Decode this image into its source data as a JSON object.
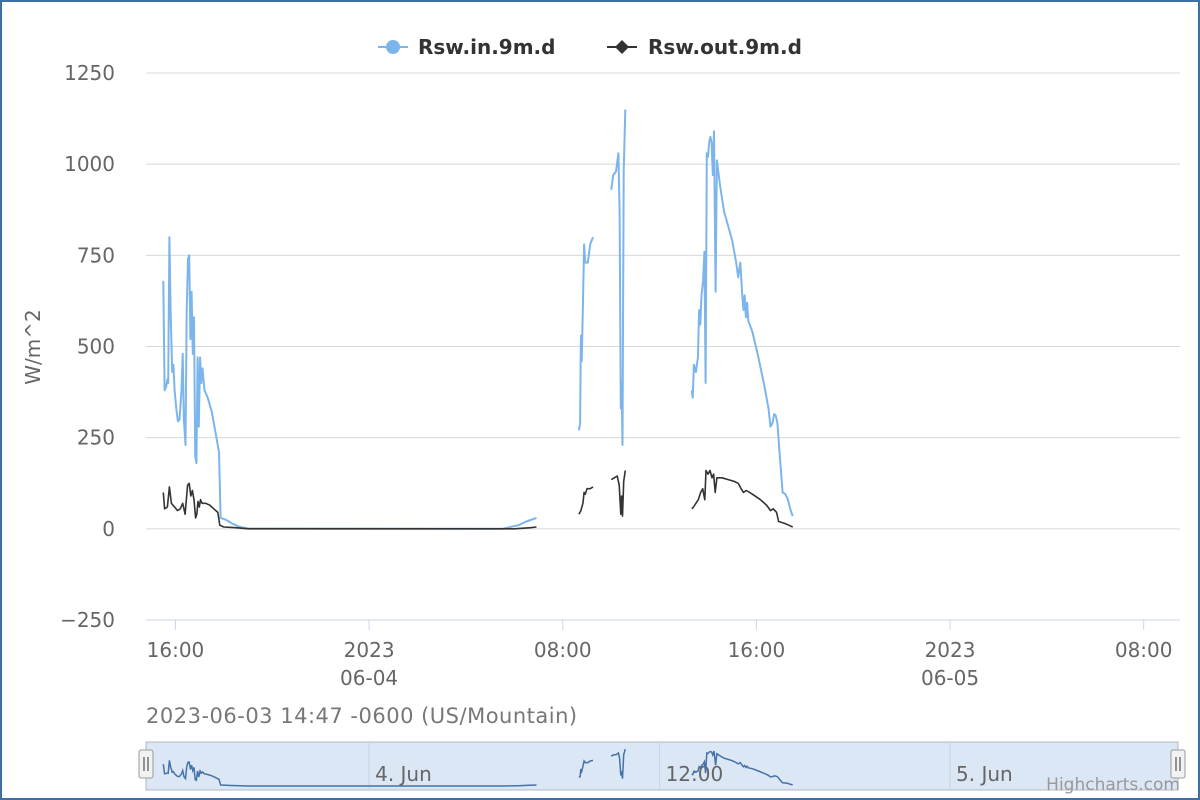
{
  "timestamp_label": "2023-06-03 14:47 -0600 (US/Mountain)",
  "credits": "Highcharts.com",
  "colors": {
    "series_in": "#7cb5ec",
    "series_out": "#333333",
    "grid": "#d8d8d8",
    "navigator_fill": "#dbe7f5"
  },
  "navigator": {
    "labels": [
      "4. Jun",
      "12:00",
      "5. Jun"
    ]
  },
  "chart_data": {
    "type": "line",
    "title": "",
    "ylabel": "W/m^2",
    "ylim": [
      -250,
      1250
    ],
    "yticks": [
      1250,
      1000,
      750,
      500,
      250,
      0,
      -250
    ],
    "xlim": [
      "2023-06-03 14:47",
      "2023-06-05 09:30"
    ],
    "xticks": [
      {
        "x": "2023-06-03 16:00",
        "lines": [
          "16:00"
        ]
      },
      {
        "x": "2023-06-04 00:00",
        "lines": [
          "2023",
          "06-04"
        ]
      },
      {
        "x": "2023-06-04 08:00",
        "lines": [
          "08:00"
        ]
      },
      {
        "x": "2023-06-04 16:00",
        "lines": [
          "16:00"
        ]
      },
      {
        "x": "2023-06-05 00:00",
        "lines": [
          "2023",
          "06-05"
        ]
      },
      {
        "x": "2023-06-05 08:00",
        "lines": [
          "08:00"
        ]
      }
    ],
    "grid": true,
    "legend": "top-center",
    "series": [
      {
        "name": "Rsw.in.9m.d",
        "marker": "circle",
        "color": "#7cb5ec",
        "segments": [
          [
            [
              "2023-06-03 15:30",
              680
            ],
            [
              "2023-06-03 15:33",
              380
            ],
            [
              "2023-06-03 15:37",
              390
            ],
            [
              "2023-06-03 15:40",
              410
            ],
            [
              "2023-06-03 15:42",
              400
            ],
            [
              "2023-06-03 15:45",
              800
            ],
            [
              "2023-06-03 15:48",
              600
            ],
            [
              "2023-06-03 15:52",
              430
            ],
            [
              "2023-06-03 15:55",
              450
            ],
            [
              "2023-06-03 15:58",
              380
            ],
            [
              "2023-06-03 16:02",
              330
            ],
            [
              "2023-06-03 16:06",
              295
            ],
            [
              "2023-06-03 16:10",
              300
            ],
            [
              "2023-06-03 16:15",
              380
            ],
            [
              "2023-06-03 16:18",
              480
            ],
            [
              "2023-06-03 16:21",
              300
            ],
            [
              "2023-06-03 16:25",
              230
            ],
            [
              "2023-06-03 16:28",
              600
            ],
            [
              "2023-06-03 16:31",
              740
            ],
            [
              "2023-06-03 16:34",
              750
            ],
            [
              "2023-06-03 16:37",
              520
            ],
            [
              "2023-06-03 16:40",
              650
            ],
            [
              "2023-06-03 16:43",
              480
            ],
            [
              "2023-06-03 16:46",
              580
            ],
            [
              "2023-06-03 16:49",
              200
            ],
            [
              "2023-06-03 16:52",
              180
            ],
            [
              "2023-06-03 16:55",
              470
            ],
            [
              "2023-06-03 16:58",
              280
            ],
            [
              "2023-06-03 17:01",
              470
            ],
            [
              "2023-06-03 17:04",
              400
            ],
            [
              "2023-06-03 17:07",
              440
            ],
            [
              "2023-06-03 17:12",
              380
            ],
            [
              "2023-06-03 17:20",
              360
            ],
            [
              "2023-06-03 17:30",
              320
            ],
            [
              "2023-06-03 17:40",
              260
            ],
            [
              "2023-06-03 17:48",
              210
            ],
            [
              "2023-06-03 17:52",
              30
            ],
            [
              "2023-06-03 18:05",
              25
            ],
            [
              "2023-06-03 18:20",
              15
            ],
            [
              "2023-06-03 18:40",
              5
            ],
            [
              "2023-06-03 19:00",
              1
            ],
            [
              "2023-06-04 05:30",
              0
            ],
            [
              "2023-06-04 06:10",
              10
            ],
            [
              "2023-06-04 06:30",
              20
            ],
            [
              "2023-06-04 06:55",
              30
            ]
          ],
          [
            [
              "2023-06-04 08:40",
              270
            ],
            [
              "2023-06-04 08:43",
              290
            ],
            [
              "2023-06-04 08:45",
              530
            ],
            [
              "2023-06-04 08:47",
              460
            ],
            [
              "2023-06-04 08:50",
              610
            ],
            [
              "2023-06-04 08:53",
              780
            ],
            [
              "2023-06-04 08:56",
              730
            ],
            [
              "2023-06-04 09:02",
              730
            ],
            [
              "2023-06-04 09:08",
              780
            ],
            [
              "2023-06-04 09:15",
              800
            ]
          ],
          [
            [
              "2023-06-04 10:00",
              930
            ],
            [
              "2023-06-04 10:05",
              970
            ],
            [
              "2023-06-04 10:12",
              980
            ],
            [
              "2023-06-04 10:18",
              1030
            ],
            [
              "2023-06-04 10:21",
              870
            ],
            [
              "2023-06-04 10:24",
              330
            ],
            [
              "2023-06-04 10:26",
              400
            ],
            [
              "2023-06-04 10:28",
              230
            ],
            [
              "2023-06-04 10:31",
              980
            ],
            [
              "2023-06-04 10:35",
              1150
            ]
          ],
          [
            [
              "2023-06-04 13:20",
              380
            ],
            [
              "2023-06-04 13:22",
              360
            ],
            [
              "2023-06-04 13:25",
              450
            ],
            [
              "2023-06-04 13:30",
              430
            ],
            [
              "2023-06-04 13:35",
              470
            ],
            [
              "2023-06-04 13:38",
              600
            ],
            [
              "2023-06-04 13:41",
              560
            ],
            [
              "2023-06-04 13:44",
              640
            ],
            [
              "2023-06-04 13:48",
              680
            ],
            [
              "2023-06-04 13:51",
              760
            ],
            [
              "2023-06-04 13:54",
              400
            ],
            [
              "2023-06-04 13:57",
              1030
            ],
            [
              "2023-06-04 14:00",
              1020
            ],
            [
              "2023-06-04 14:03",
              1060
            ],
            [
              "2023-06-04 14:06",
              1075
            ],
            [
              "2023-06-04 14:09",
              1060
            ],
            [
              "2023-06-04 14:12",
              970
            ],
            [
              "2023-06-04 14:15",
              1090
            ],
            [
              "2023-06-04 14:19",
              650
            ],
            [
              "2023-06-04 14:22",
              1010
            ],
            [
              "2023-06-04 14:30",
              940
            ],
            [
              "2023-06-04 14:40",
              870
            ],
            [
              "2023-06-04 14:50",
              830
            ],
            [
              "2023-06-04 15:00",
              790
            ],
            [
              "2023-06-04 15:10",
              730
            ],
            [
              "2023-06-04 15:15",
              690
            ],
            [
              "2023-06-04 15:20",
              730
            ],
            [
              "2023-06-04 15:25",
              640
            ],
            [
              "2023-06-04 15:28",
              600
            ],
            [
              "2023-06-04 15:31",
              640
            ],
            [
              "2023-06-04 15:34",
              580
            ],
            [
              "2023-06-04 15:37",
              620
            ],
            [
              "2023-06-04 15:40",
              570
            ],
            [
              "2023-06-04 15:50",
              540
            ],
            [
              "2023-06-04 16:05",
              470
            ],
            [
              "2023-06-04 16:20",
              390
            ],
            [
              "2023-06-04 16:30",
              330
            ],
            [
              "2023-06-04 16:35",
              280
            ],
            [
              "2023-06-04 16:40",
              290
            ],
            [
              "2023-06-04 16:44",
              315
            ],
            [
              "2023-06-04 16:48",
              310
            ],
            [
              "2023-06-04 16:52",
              290
            ],
            [
              "2023-06-04 16:58",
              200
            ],
            [
              "2023-06-04 17:05",
              100
            ],
            [
              "2023-06-04 17:12",
              95
            ],
            [
              "2023-06-04 17:18",
              80
            ],
            [
              "2023-06-04 17:25",
              50
            ],
            [
              "2023-06-04 17:30",
              35
            ]
          ]
        ]
      },
      {
        "name": "Rsw.out.9m.d",
        "marker": "diamond",
        "color": "#333333",
        "segments": [
          [
            [
              "2023-06-03 15:30",
              100
            ],
            [
              "2023-06-03 15:33",
              55
            ],
            [
              "2023-06-03 15:40",
              60
            ],
            [
              "2023-06-03 15:45",
              115
            ],
            [
              "2023-06-03 15:50",
              70
            ],
            [
              "2023-06-03 15:58",
              60
            ],
            [
              "2023-06-03 16:05",
              50
            ],
            [
              "2023-06-03 16:12",
              55
            ],
            [
              "2023-06-03 16:18",
              70
            ],
            [
              "2023-06-03 16:24",
              40
            ],
            [
              "2023-06-03 16:30",
              120
            ],
            [
              "2023-06-03 16:34",
              125
            ],
            [
              "2023-06-03 16:38",
              90
            ],
            [
              "2023-06-03 16:42",
              105
            ],
            [
              "2023-06-03 16:46",
              80
            ],
            [
              "2023-06-03 16:50",
              30
            ],
            [
              "2023-06-03 16:53",
              40
            ],
            [
              "2023-06-03 16:56",
              75
            ],
            [
              "2023-06-03 16:59",
              60
            ],
            [
              "2023-06-03 17:02",
              80
            ],
            [
              "2023-06-03 17:06",
              70
            ],
            [
              "2023-06-03 17:15",
              70
            ],
            [
              "2023-06-03 17:25",
              65
            ],
            [
              "2023-06-03 17:35",
              55
            ],
            [
              "2023-06-03 17:45",
              45
            ],
            [
              "2023-06-03 17:50",
              10
            ],
            [
              "2023-06-03 18:00",
              5
            ],
            [
              "2023-06-03 18:30",
              3
            ],
            [
              "2023-06-03 19:00",
              0
            ],
            [
              "2023-06-04 06:00",
              0
            ],
            [
              "2023-06-04 06:40",
              3
            ],
            [
              "2023-06-04 06:55",
              5
            ]
          ],
          [
            [
              "2023-06-04 08:40",
              40
            ],
            [
              "2023-06-04 08:45",
              50
            ],
            [
              "2023-06-04 08:50",
              70
            ],
            [
              "2023-06-04 08:53",
              100
            ],
            [
              "2023-06-04 08:56",
              95
            ],
            [
              "2023-06-04 09:00",
              110
            ],
            [
              "2023-06-04 09:08",
              110
            ],
            [
              "2023-06-04 09:15",
              115
            ]
          ],
          [
            [
              "2023-06-04 10:00",
              135
            ],
            [
              "2023-06-04 10:08",
              140
            ],
            [
              "2023-06-04 10:15",
              145
            ],
            [
              "2023-06-04 10:20",
              120
            ],
            [
              "2023-06-04 10:24",
              40
            ],
            [
              "2023-06-04 10:26",
              90
            ],
            [
              "2023-06-04 10:28",
              35
            ],
            [
              "2023-06-04 10:31",
              130
            ],
            [
              "2023-06-04 10:35",
              160
            ]
          ],
          [
            [
              "2023-06-04 13:20",
              55
            ],
            [
              "2023-06-04 13:24",
              60
            ],
            [
              "2023-06-04 13:30",
              70
            ],
            [
              "2023-06-04 13:36",
              80
            ],
            [
              "2023-06-04 13:42",
              100
            ],
            [
              "2023-06-04 13:47",
              110
            ],
            [
              "2023-06-04 13:52",
              80
            ],
            [
              "2023-06-04 13:55",
              160
            ],
            [
              "2023-06-04 14:00",
              150
            ],
            [
              "2023-06-04 14:05",
              160
            ],
            [
              "2023-06-04 14:10",
              140
            ],
            [
              "2023-06-04 14:14",
              150
            ],
            [
              "2023-06-04 14:18",
              100
            ],
            [
              "2023-06-04 14:22",
              140
            ],
            [
              "2023-06-04 14:35",
              140
            ],
            [
              "2023-06-04 14:50",
              135
            ],
            [
              "2023-06-04 15:05",
              130
            ],
            [
              "2023-06-04 15:15",
              125
            ],
            [
              "2023-06-04 15:22",
              110
            ],
            [
              "2023-06-04 15:28",
              100
            ],
            [
              "2023-06-04 15:35",
              105
            ],
            [
              "2023-06-04 15:50",
              95
            ],
            [
              "2023-06-04 16:10",
              80
            ],
            [
              "2023-06-04 16:25",
              65
            ],
            [
              "2023-06-04 16:35",
              50
            ],
            [
              "2023-06-04 16:42",
              55
            ],
            [
              "2023-06-04 16:50",
              45
            ],
            [
              "2023-06-04 16:55",
              20
            ],
            [
              "2023-06-04 17:10",
              15
            ],
            [
              "2023-06-04 17:20",
              10
            ],
            [
              "2023-06-04 17:30",
              5
            ]
          ]
        ]
      }
    ]
  }
}
